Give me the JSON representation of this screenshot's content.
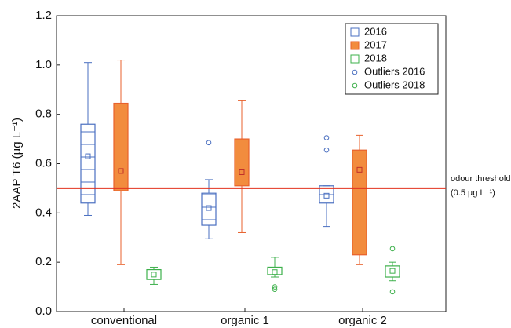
{
  "chart_data": {
    "type": "box",
    "ylabel": "2AAP T6 (µg L⁻¹)",
    "categories": [
      "conventional",
      "organic 1",
      "organic 2"
    ],
    "ylim": [
      0,
      1.2
    ],
    "yticks": [
      {
        "value": 0,
        "label": "0.0"
      },
      0.2,
      0.4,
      0.6,
      0.8,
      {
        "value": 1,
        "label": "1.0"
      },
      1.2
    ],
    "threshold": {
      "value": 0.5,
      "color": "#e2321f",
      "label": "odour threshold",
      "sublabel": "(0.5 µg L⁻¹)"
    },
    "legend": "upper right",
    "series": [
      {
        "name": "2016",
        "color": "#4a6fc0",
        "fill": "none",
        "outlier_name": "Outliers 2016",
        "boxes": [
          {
            "min": 0.39,
            "q1": 0.44,
            "q3": 0.76,
            "max": 1.01,
            "mean": 0.63
          },
          {
            "min": 0.295,
            "q1": 0.35,
            "q3": 0.48,
            "max": 0.535,
            "mean": 0.42
          },
          {
            "min": 0.345,
            "q1": 0.44,
            "q3": 0.51,
            "max": 0.51,
            "mean": 0.47
          }
        ],
        "outliers": [
          [],
          [
            0.685
          ],
          [
            0.705,
            0.655
          ]
        ]
      },
      {
        "name": "2017",
        "color": "#e8612c",
        "fill": "#f28c3e",
        "boxes": [
          {
            "min": 0.19,
            "q1": 0.49,
            "q3": 0.845,
            "max": 1.02,
            "mean": 0.57
          },
          {
            "min": 0.32,
            "q1": 0.51,
            "q3": 0.7,
            "max": 0.855,
            "mean": 0.565
          },
          {
            "min": 0.19,
            "q1": 0.23,
            "q3": 0.655,
            "max": 0.715,
            "mean": 0.575
          }
        ],
        "outliers": [
          [],
          [],
          []
        ]
      },
      {
        "name": "2018",
        "color": "#3db04b",
        "fill": "none",
        "outlier_name": "Outliers 2018",
        "boxes": [
          {
            "min": 0.11,
            "q1": 0.13,
            "q3": 0.17,
            "max": 0.18,
            "mean": 0.15
          },
          {
            "min": 0.14,
            "q1": 0.15,
            "q3": 0.18,
            "max": 0.22,
            "mean": 0.16
          },
          {
            "min": 0.125,
            "q1": 0.14,
            "q3": 0.185,
            "max": 0.2,
            "mean": 0.165
          }
        ],
        "outliers": [
          [],
          [
            0.1,
            0.09
          ],
          [
            0.255,
            0.08
          ]
        ]
      }
    ]
  }
}
